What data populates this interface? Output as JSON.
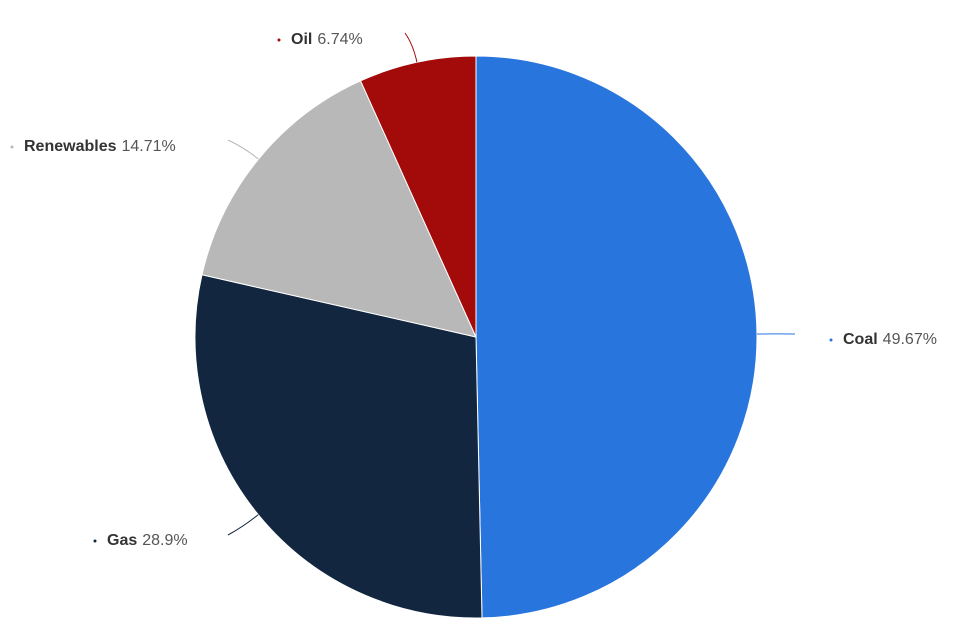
{
  "chart_data": {
    "type": "pie",
    "categories": [
      "Coal",
      "Gas",
      "Renewables",
      "Oil"
    ],
    "values": [
      49.67,
      28.9,
      14.71,
      6.74
    ],
    "value_labels": [
      "49.67%",
      "28.9%",
      "14.71%",
      "6.74%"
    ],
    "colors": [
      "#2876dd",
      "#12263f",
      "#b8b8b8",
      "#a30a0a"
    ]
  }
}
